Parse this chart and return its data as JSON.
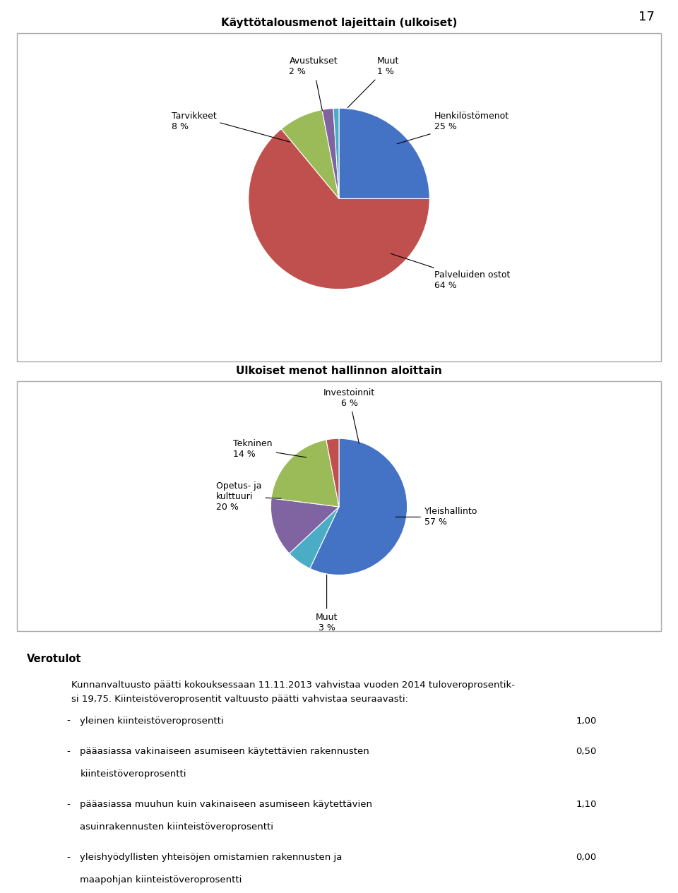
{
  "page_number": "17",
  "pie1": {
    "title": "Käyttötalousmenot lajeittain (ulkoiset)",
    "labels": [
      "Henkilöstömenot",
      "Palveluiden ostot",
      "Tarvikkeet",
      "Avustukset",
      "Muut"
    ],
    "values": [
      25,
      64,
      8,
      2,
      1
    ],
    "colors": [
      "#4472C4",
      "#C0504D",
      "#9BBB59",
      "#8064A2",
      "#4BACC6"
    ],
    "startangle": 90
  },
  "pie2": {
    "title": "Ulkoiset menot hallinnon aloittain",
    "labels": [
      "Yleishallinto",
      "Investoinnit",
      "Tekninen",
      "Opetus- ja kulttuuri",
      "Muut"
    ],
    "values": [
      57,
      6,
      14,
      20,
      3
    ],
    "colors": [
      "#4472C4",
      "#4BACC6",
      "#8064A2",
      "#9BBB59",
      "#C0504D"
    ],
    "startangle": 90
  },
  "text_section": {
    "heading": "Verotulot",
    "paragraph1": "Kunnanvaltuusto päätti kokouksessaan 11.11.2013 vahvistaa vuoden 2014 tuloveroprosentik-",
    "paragraph2": "si 19,75. Kiinteistöveroprosentit valtuusto päätti vahvistaa seuraavasti:",
    "bullet_items": [
      {
        "text": "yleinen kiinteistöveroprosentti",
        "value": "1,00"
      },
      {
        "text": "pääasiassa vakinaiseen asumiseen käytettävien rakennusten",
        "text2": "kiinteistöveroprosentti",
        "value": "0,50"
      },
      {
        "text": "pääasiassa muuhun kuin vakinaiseen asumiseen käytettävien",
        "text2": "asuinrakennusten kiinteistöveroprosentti",
        "value": "1,10"
      },
      {
        "text": "yleishyödyllisten yhteisöjen omistamien rakennusten ja",
        "text2": "maapohjan kiinteistöveroprosentti",
        "value": "0,00"
      }
    ]
  }
}
